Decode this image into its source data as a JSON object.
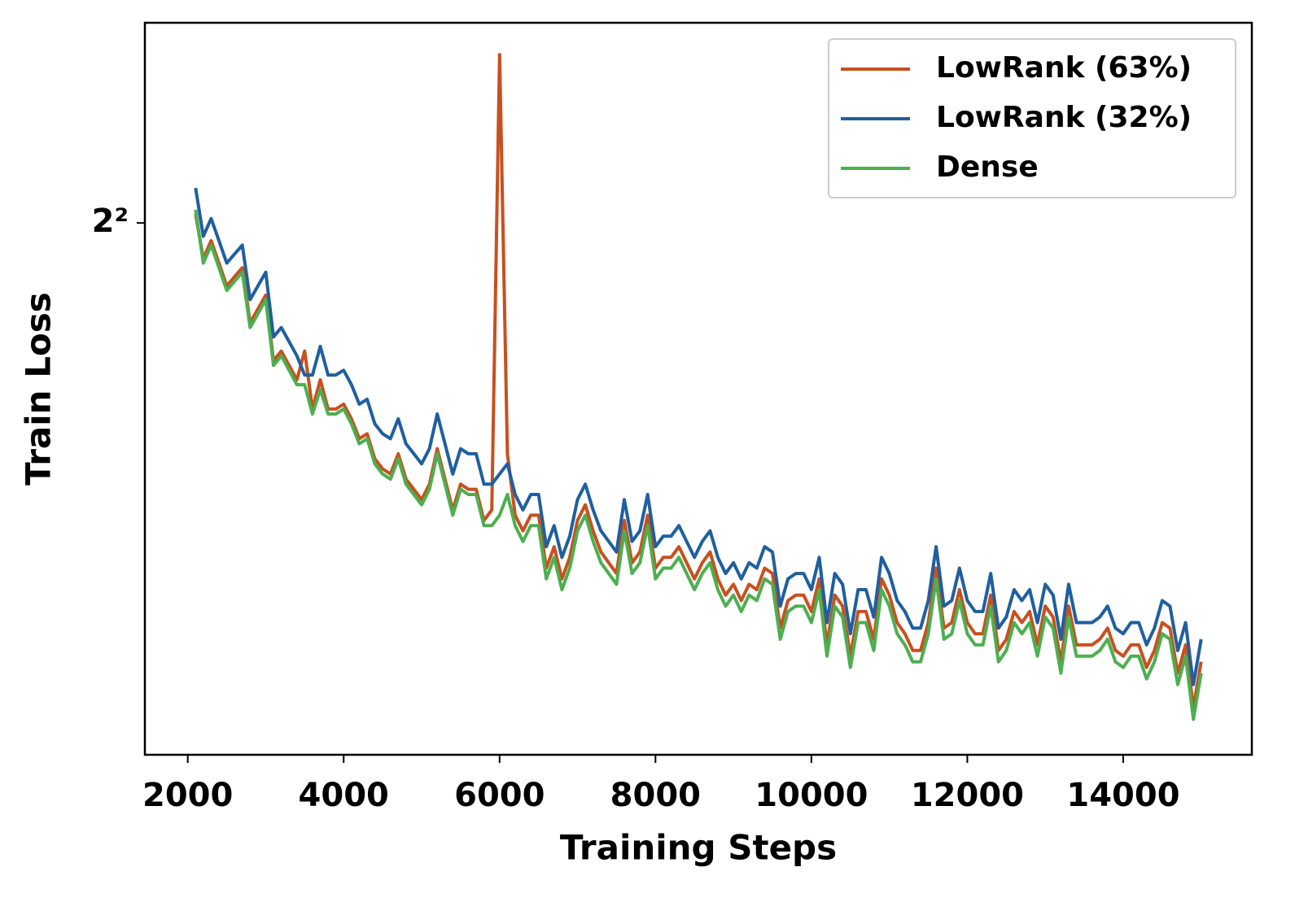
{
  "chart_data": {
    "type": "line",
    "xlabel": "Training Steps",
    "ylabel": "Train Loss",
    "x": [
      2100,
      2200,
      2300,
      2400,
      2500,
      2600,
      2700,
      2800,
      2900,
      3000,
      3100,
      3200,
      3300,
      3400,
      3500,
      3600,
      3700,
      3800,
      3900,
      4000,
      4100,
      4200,
      4300,
      4400,
      4500,
      4600,
      4700,
      4800,
      4900,
      5000,
      5100,
      5200,
      5300,
      5400,
      5500,
      5600,
      5700,
      5800,
      5900,
      6000,
      6100,
      6200,
      6300,
      6400,
      6500,
      6600,
      6700,
      6800,
      6900,
      7000,
      7100,
      7200,
      7300,
      7400,
      7500,
      7600,
      7700,
      7800,
      7900,
      8000,
      8100,
      8200,
      8300,
      8400,
      8500,
      8600,
      8700,
      8800,
      8900,
      9000,
      9100,
      9200,
      9300,
      9400,
      9500,
      9600,
      9700,
      9800,
      9900,
      10000,
      10100,
      10200,
      10300,
      10400,
      10500,
      10600,
      10700,
      10800,
      10900,
      11000,
      11100,
      11200,
      11300,
      11400,
      11500,
      11600,
      11700,
      11800,
      11900,
      12000,
      12100,
      12200,
      12300,
      12400,
      12500,
      12600,
      12700,
      12800,
      12900,
      13000,
      13100,
      13200,
      13300,
      13400,
      13500,
      13600,
      13700,
      13800,
      13900,
      14000,
      14100,
      14200,
      14300,
      14400,
      14500,
      14600,
      14700,
      14800,
      14900,
      15000
    ],
    "series": [
      {
        "name": "LowRank (63%)",
        "color": "#c8501e",
        "values": [
          4.02,
          3.92,
          3.96,
          3.91,
          3.86,
          3.88,
          3.9,
          3.78,
          3.81,
          3.84,
          3.7,
          3.72,
          3.69,
          3.66,
          3.72,
          3.6,
          3.66,
          3.6,
          3.6,
          3.61,
          3.58,
          3.54,
          3.55,
          3.5,
          3.48,
          3.47,
          3.51,
          3.46,
          3.44,
          3.42,
          3.45,
          3.52,
          3.46,
          3.4,
          3.45,
          3.44,
          3.44,
          3.38,
          3.4,
          4.4,
          3.51,
          3.39,
          3.36,
          3.39,
          3.39,
          3.29,
          3.33,
          3.27,
          3.31,
          3.38,
          3.41,
          3.36,
          3.32,
          3.3,
          3.28,
          3.38,
          3.3,
          3.32,
          3.39,
          3.29,
          3.31,
          3.31,
          3.33,
          3.3,
          3.27,
          3.3,
          3.32,
          3.27,
          3.24,
          3.26,
          3.23,
          3.26,
          3.25,
          3.29,
          3.28,
          3.18,
          3.23,
          3.24,
          3.24,
          3.21,
          3.27,
          3.15,
          3.24,
          3.22,
          3.13,
          3.21,
          3.21,
          3.16,
          3.27,
          3.24,
          3.19,
          3.17,
          3.14,
          3.14,
          3.19,
          3.29,
          3.18,
          3.19,
          3.25,
          3.19,
          3.17,
          3.17,
          3.24,
          3.14,
          3.16,
          3.21,
          3.19,
          3.21,
          3.15,
          3.22,
          3.2,
          3.12,
          3.22,
          3.15,
          3.15,
          3.15,
          3.16,
          3.18,
          3.14,
          3.13,
          3.15,
          3.15,
          3.11,
          3.14,
          3.19,
          3.18,
          3.1,
          3.15,
          3.04,
          3.12
        ]
      },
      {
        "name": "LowRank (32%)",
        "color": "#1f5fa0",
        "values": [
          4.08,
          3.97,
          4.01,
          3.96,
          3.91,
          3.93,
          3.95,
          3.83,
          3.86,
          3.89,
          3.75,
          3.77,
          3.74,
          3.71,
          3.67,
          3.67,
          3.73,
          3.67,
          3.67,
          3.68,
          3.65,
          3.61,
          3.62,
          3.57,
          3.55,
          3.54,
          3.58,
          3.53,
          3.51,
          3.49,
          3.52,
          3.59,
          3.53,
          3.47,
          3.52,
          3.51,
          3.51,
          3.45,
          3.45,
          3.47,
          3.49,
          3.43,
          3.4,
          3.43,
          3.43,
          3.33,
          3.37,
          3.31,
          3.35,
          3.42,
          3.45,
          3.4,
          3.36,
          3.34,
          3.32,
          3.42,
          3.34,
          3.36,
          3.43,
          3.33,
          3.35,
          3.35,
          3.37,
          3.34,
          3.31,
          3.34,
          3.36,
          3.31,
          3.28,
          3.3,
          3.27,
          3.3,
          3.29,
          3.33,
          3.32,
          3.22,
          3.27,
          3.28,
          3.28,
          3.25,
          3.31,
          3.19,
          3.28,
          3.26,
          3.17,
          3.25,
          3.25,
          3.2,
          3.31,
          3.28,
          3.23,
          3.21,
          3.18,
          3.18,
          3.23,
          3.33,
          3.22,
          3.23,
          3.29,
          3.23,
          3.21,
          3.21,
          3.28,
          3.18,
          3.2,
          3.25,
          3.23,
          3.25,
          3.19,
          3.26,
          3.24,
          3.16,
          3.26,
          3.19,
          3.19,
          3.19,
          3.2,
          3.22,
          3.18,
          3.17,
          3.19,
          3.19,
          3.15,
          3.18,
          3.23,
          3.22,
          3.14,
          3.19,
          3.08,
          3.16
        ]
      },
      {
        "name": "Dense",
        "color": "#4caf50",
        "values": [
          4.03,
          3.91,
          3.95,
          3.9,
          3.85,
          3.87,
          3.89,
          3.77,
          3.8,
          3.83,
          3.69,
          3.71,
          3.68,
          3.65,
          3.65,
          3.59,
          3.64,
          3.59,
          3.59,
          3.6,
          3.57,
          3.53,
          3.54,
          3.49,
          3.47,
          3.46,
          3.5,
          3.45,
          3.43,
          3.41,
          3.44,
          3.51,
          3.45,
          3.39,
          3.44,
          3.43,
          3.43,
          3.37,
          3.37,
          3.39,
          3.43,
          3.37,
          3.34,
          3.37,
          3.37,
          3.27,
          3.31,
          3.25,
          3.29,
          3.36,
          3.39,
          3.34,
          3.3,
          3.28,
          3.26,
          3.36,
          3.28,
          3.3,
          3.37,
          3.27,
          3.29,
          3.29,
          3.31,
          3.28,
          3.25,
          3.28,
          3.3,
          3.25,
          3.22,
          3.24,
          3.21,
          3.24,
          3.23,
          3.27,
          3.26,
          3.16,
          3.21,
          3.22,
          3.22,
          3.19,
          3.25,
          3.13,
          3.22,
          3.2,
          3.11,
          3.19,
          3.19,
          3.14,
          3.25,
          3.22,
          3.17,
          3.15,
          3.12,
          3.12,
          3.17,
          3.27,
          3.16,
          3.17,
          3.23,
          3.17,
          3.15,
          3.15,
          3.22,
          3.12,
          3.14,
          3.19,
          3.17,
          3.19,
          3.13,
          3.2,
          3.18,
          3.1,
          3.2,
          3.13,
          3.13,
          3.13,
          3.14,
          3.16,
          3.12,
          3.11,
          3.13,
          3.13,
          3.09,
          3.12,
          3.17,
          3.16,
          3.08,
          3.13,
          3.02,
          3.1
        ]
      }
    ],
    "xlim": [
      1450,
      15650
    ],
    "xticks": [
      2000,
      4000,
      6000,
      8000,
      10000,
      12000,
      14000
    ],
    "ylim": [
      2.96,
      4.48
    ],
    "yscale": "log",
    "ybase": 2,
    "yticks": [
      {
        "value": 4,
        "label": "2²"
      }
    ],
    "legend": "upper right",
    "grid": false
  }
}
